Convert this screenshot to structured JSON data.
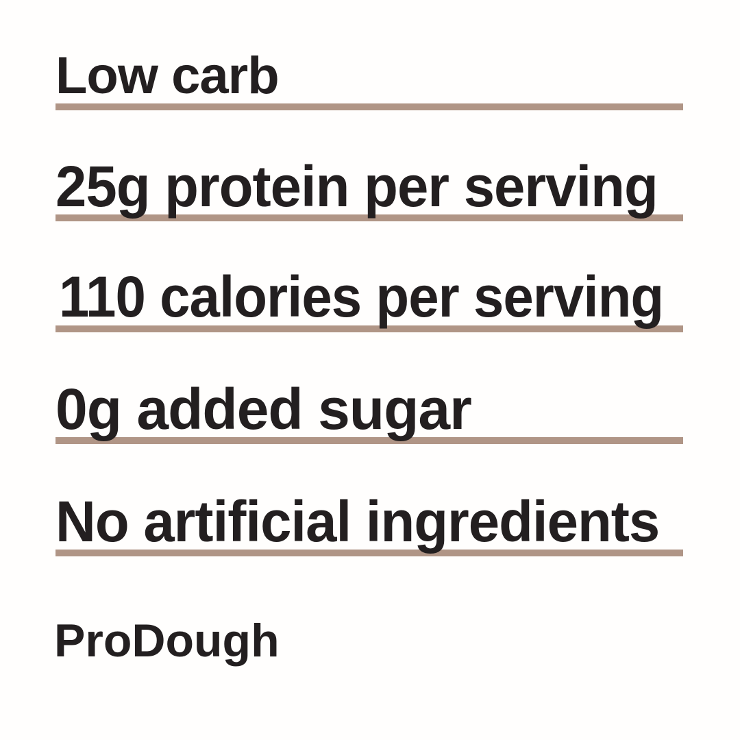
{
  "page": {
    "background_color": "#ffffff",
    "text_color": "#231f20",
    "underline_color": "#b09586"
  },
  "claims": [
    {
      "text": "Low carb"
    },
    {
      "text": "25g protein per serving"
    },
    {
      "text": "110 calories per serving"
    },
    {
      "text": "0g added sugar"
    },
    {
      "text": "No artificial ingredients"
    }
  ],
  "brand": {
    "name": "ProDough"
  }
}
